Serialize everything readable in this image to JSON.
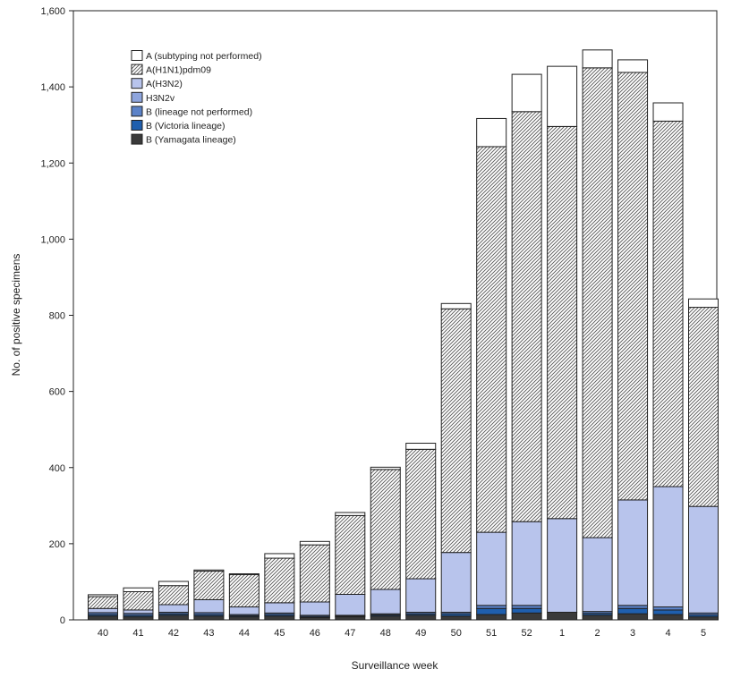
{
  "chart_data": {
    "type": "bar",
    "stacked": true,
    "title": "",
    "xlabel": "Surveillance week",
    "ylabel": "No. of positive specimens",
    "ylim": [
      0,
      1600
    ],
    "yticks": [
      0,
      200,
      400,
      600,
      800,
      1000,
      1200,
      1400,
      1600
    ],
    "ytick_labels": [
      "0",
      "200",
      "400",
      "600",
      "800",
      "1,000",
      "1,200",
      "1,400",
      "1,600"
    ],
    "legend_position": "top-left",
    "categories": [
      "40",
      "41",
      "42",
      "43",
      "44",
      "45",
      "46",
      "47",
      "48",
      "49",
      "50",
      "51",
      "52",
      "1",
      "2",
      "3",
      "4",
      "5"
    ],
    "series": [
      {
        "name": "B (Yamagata lineage)",
        "fill": "#3a3a3a",
        "pattern": "none",
        "values": [
          10,
          8,
          12,
          10,
          8,
          10,
          6,
          8,
          10,
          12,
          10,
          14,
          18,
          20,
          12,
          16,
          14,
          8
        ]
      },
      {
        "name": "B (Victoria lineage)",
        "fill": "#1f5fae",
        "pattern": "none",
        "values": [
          4,
          4,
          4,
          4,
          3,
          4,
          3,
          2,
          3,
          4,
          6,
          16,
          12,
          0,
          5,
          14,
          12,
          5
        ]
      },
      {
        "name": "B (lineage not performed)",
        "fill": "#5b82c8",
        "pattern": "none",
        "values": [
          5,
          5,
          4,
          5,
          3,
          4,
          3,
          2,
          3,
          4,
          4,
          8,
          8,
          0,
          5,
          8,
          8,
          5
        ]
      },
      {
        "name": "H3N2v",
        "fill": "#8ea5dd",
        "pattern": "none",
        "values": [
          0,
          0,
          0,
          0,
          0,
          0,
          0,
          0,
          0,
          0,
          0,
          0,
          0,
          0,
          0,
          0,
          0,
          0
        ]
      },
      {
        "name": "A(H3N2)",
        "fill": "#b8c4ec",
        "pattern": "none",
        "values": [
          11,
          9,
          20,
          34,
          20,
          27,
          35,
          55,
          64,
          88,
          157,
          192,
          220,
          246,
          194,
          277,
          316,
          280
        ]
      },
      {
        "name": "A(H1N1)pdm09",
        "fill": "#ffffff",
        "pattern": "hatch",
        "values": [
          31,
          48,
          50,
          75,
          85,
          117,
          150,
          207,
          315,
          340,
          640,
          1013,
          1077,
          1030,
          1234,
          1123,
          960,
          523
        ]
      },
      {
        "name": "A (subtyping not performed)",
        "fill": "#ffffff",
        "pattern": "none",
        "values": [
          5,
          10,
          11,
          3,
          2,
          12,
          9,
          8,
          6,
          16,
          14,
          74,
          98,
          158,
          47,
          33,
          48,
          22
        ]
      }
    ],
    "legend_order": [
      "A (subtyping not performed)",
      "A(H1N1)pdm09",
      "A(H3N2)",
      "H3N2v",
      "B (lineage not performed)",
      "B (Victoria lineage)",
      "B (Yamagata lineage)"
    ]
  }
}
